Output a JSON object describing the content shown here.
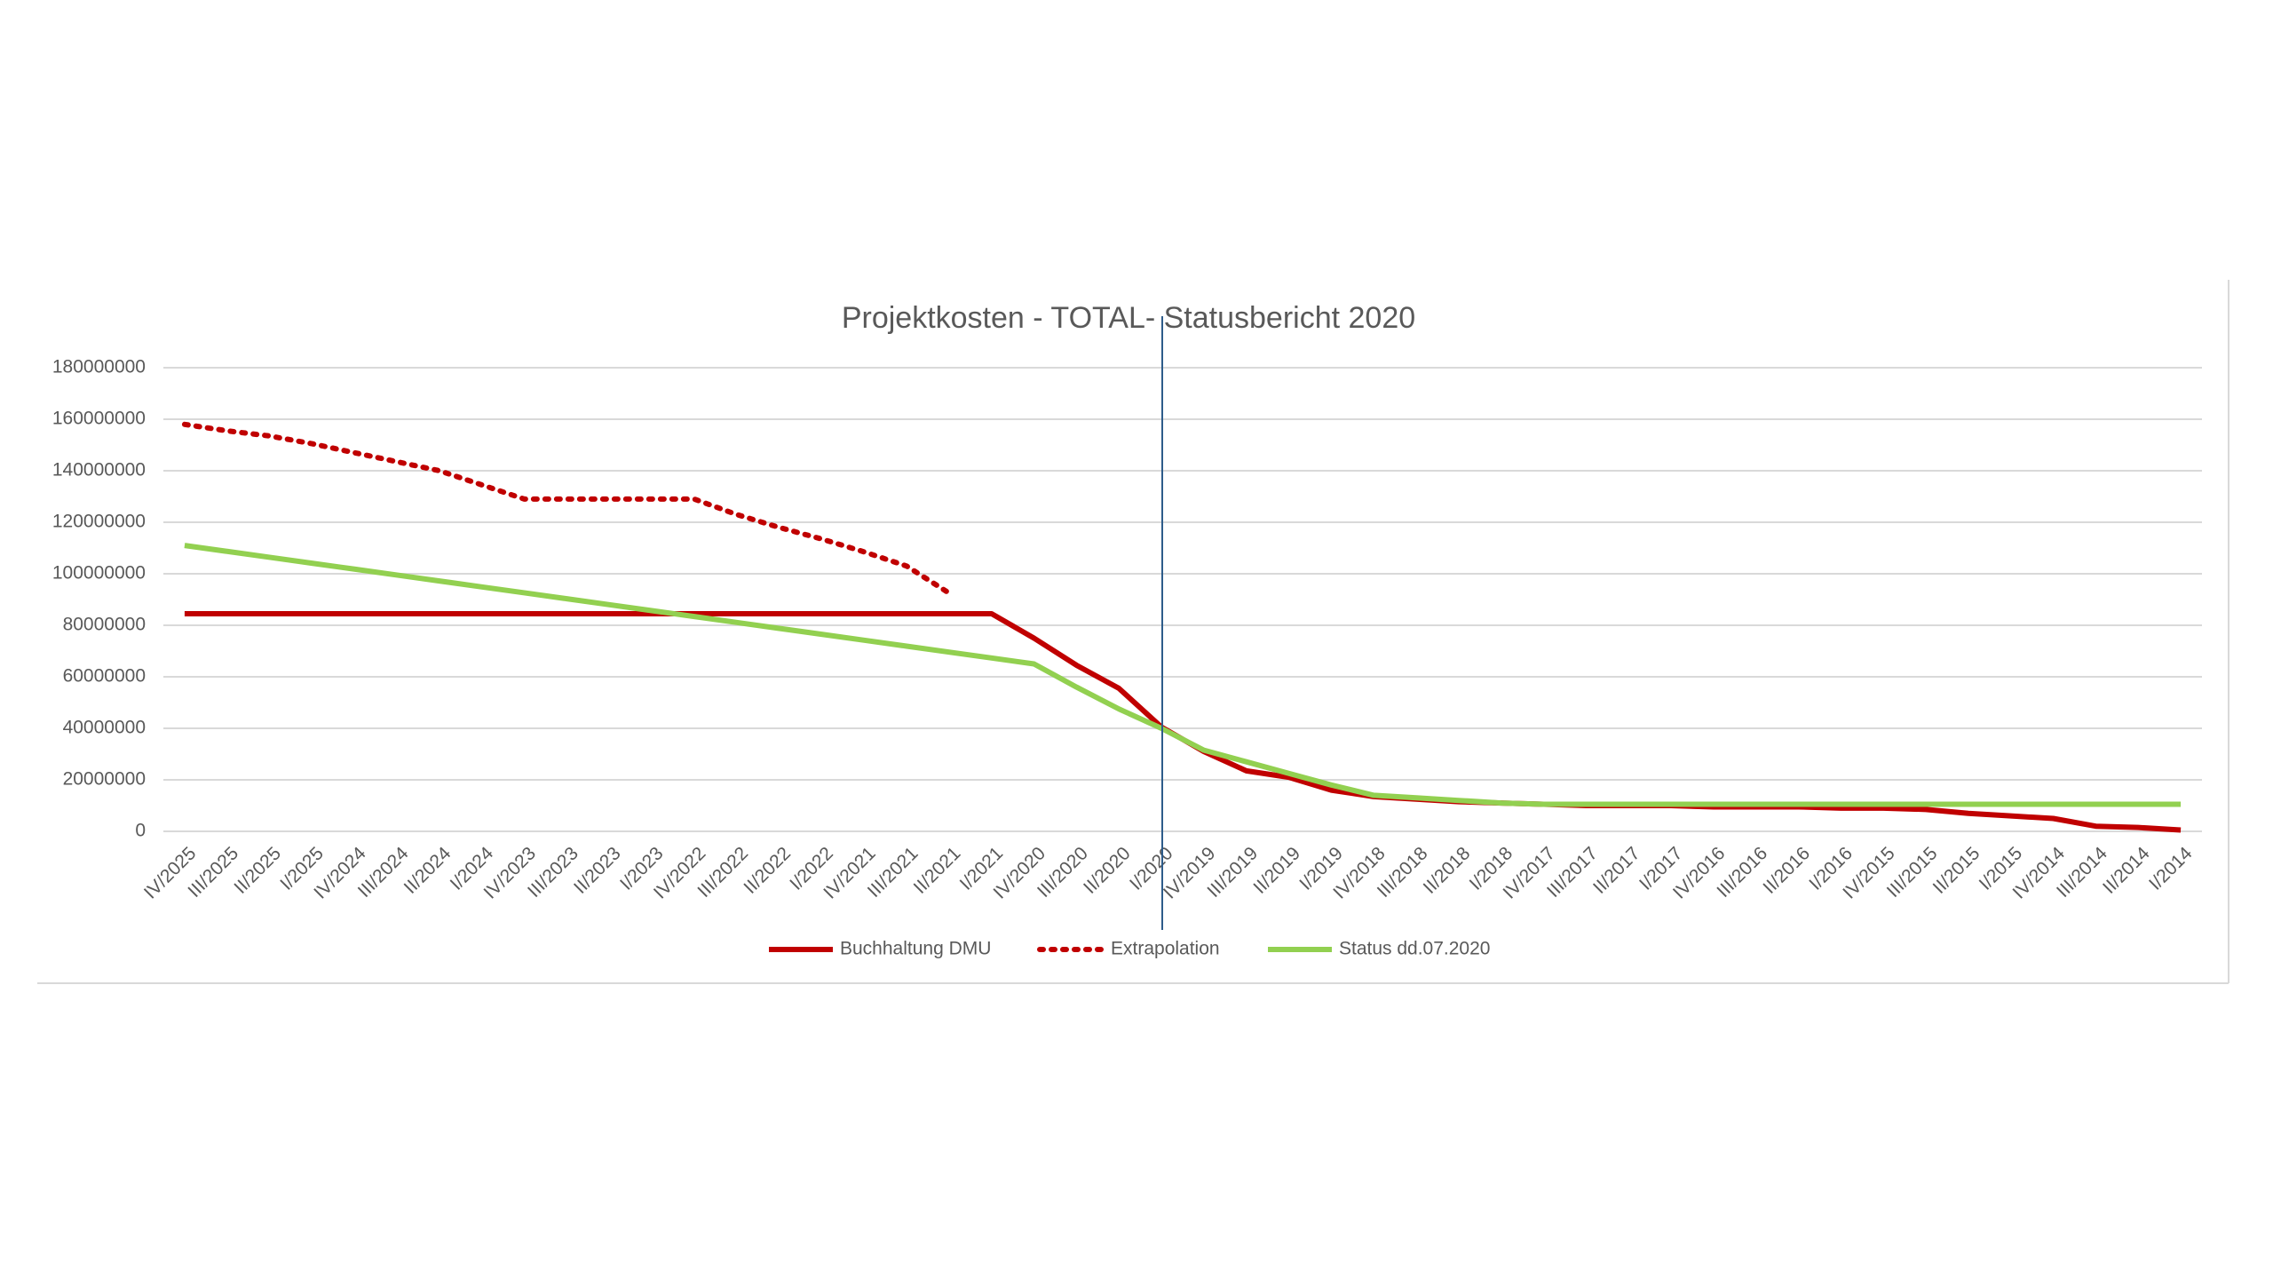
{
  "chart_data": {
    "type": "line",
    "title": "Projektkosten - TOTAL- Statusbericht 2020",
    "categories": [
      "IV/2025",
      "III/2025",
      "II/2025",
      "I/2025",
      "IV/2024",
      "III/2024",
      "II/2024",
      "I/2024",
      "IV/2023",
      "III/2023",
      "II/2023",
      "I/2023",
      "IV/2022",
      "III/2022",
      "II/2022",
      "I/2022",
      "IV/2021",
      "III/2021",
      "II/2021",
      "I/2021",
      "IV/2020",
      "III/2020",
      "II/2020",
      "I/2020",
      "IV/2019",
      "III/2019",
      "II/2019",
      "I/2019",
      "IV/2018",
      "III/2018",
      "II/2018",
      "I/2018",
      "IV/2017",
      "III/2017",
      "II/2017",
      "I/2017",
      "IV/2016",
      "III/2016",
      "II/2016",
      "I/2016",
      "IV/2015",
      "III/2015",
      "II/2015",
      "I/2015",
      "IV/2014",
      "III/2014",
      "II/2014",
      "I/2014"
    ],
    "series": [
      {
        "name": "Buchhaltung DMU",
        "color": "#c00000",
        "style": "solid",
        "values": [
          84500000,
          84500000,
          84500000,
          84500000,
          84500000,
          84500000,
          84500000,
          84500000,
          84500000,
          84500000,
          84500000,
          84500000,
          84500000,
          84500000,
          84500000,
          84500000,
          84500000,
          84500000,
          84500000,
          84500000,
          75000000,
          64500000,
          55500000,
          40500000,
          31000000,
          23500000,
          21000000,
          16000000,
          13500000,
          12500000,
          11500000,
          11000000,
          10500000,
          10000000,
          10000000,
          10000000,
          9500000,
          9500000,
          9500000,
          9000000,
          9000000,
          8500000,
          7000000,
          6000000,
          5000000,
          2000000,
          1500000,
          500000
        ]
      },
      {
        "name": "Extrapolation",
        "color": "#c00000",
        "style": "dotted",
        "values": [
          158000000,
          155500000,
          153500000,
          150500000,
          147000000,
          143500000,
          140000000,
          134500000,
          129000000,
          129000000,
          129000000,
          129000000,
          129000000,
          123000000,
          118000000,
          113500000,
          108500000,
          103000000,
          92500000,
          null,
          null,
          null,
          null,
          null,
          null,
          null,
          null,
          null,
          null,
          null,
          null,
          null,
          null,
          null,
          null,
          null,
          null,
          null,
          null,
          null,
          null,
          null,
          null,
          null,
          null,
          null,
          null,
          null
        ]
      },
      {
        "name": "Status dd.07.2020",
        "color": "#92d050",
        "style": "solid",
        "values": [
          111000000,
          108700000,
          106400000,
          104100000,
          101800000,
          99500000,
          97200000,
          94900000,
          92600000,
          90300000,
          88000000,
          85700000,
          83400000,
          81100000,
          78800000,
          76500000,
          74200000,
          71900000,
          69600000,
          67300000,
          65000000,
          56000000,
          47500000,
          40000000,
          31500000,
          27000000,
          22500000,
          18000000,
          14000000,
          13000000,
          12000000,
          11000000,
          10500000,
          10500000,
          10500000,
          10500000,
          10500000,
          10500000,
          10500000,
          10500000,
          10500000,
          10500000,
          10500000,
          10500000,
          10500000,
          10500000,
          10500000,
          10500000
        ]
      }
    ],
    "ylim": [
      0,
      180000000
    ],
    "yticks": [
      0,
      20000000,
      40000000,
      60000000,
      80000000,
      100000000,
      120000000,
      140000000,
      160000000,
      180000000
    ],
    "grid": true,
    "legend": "bottom"
  }
}
